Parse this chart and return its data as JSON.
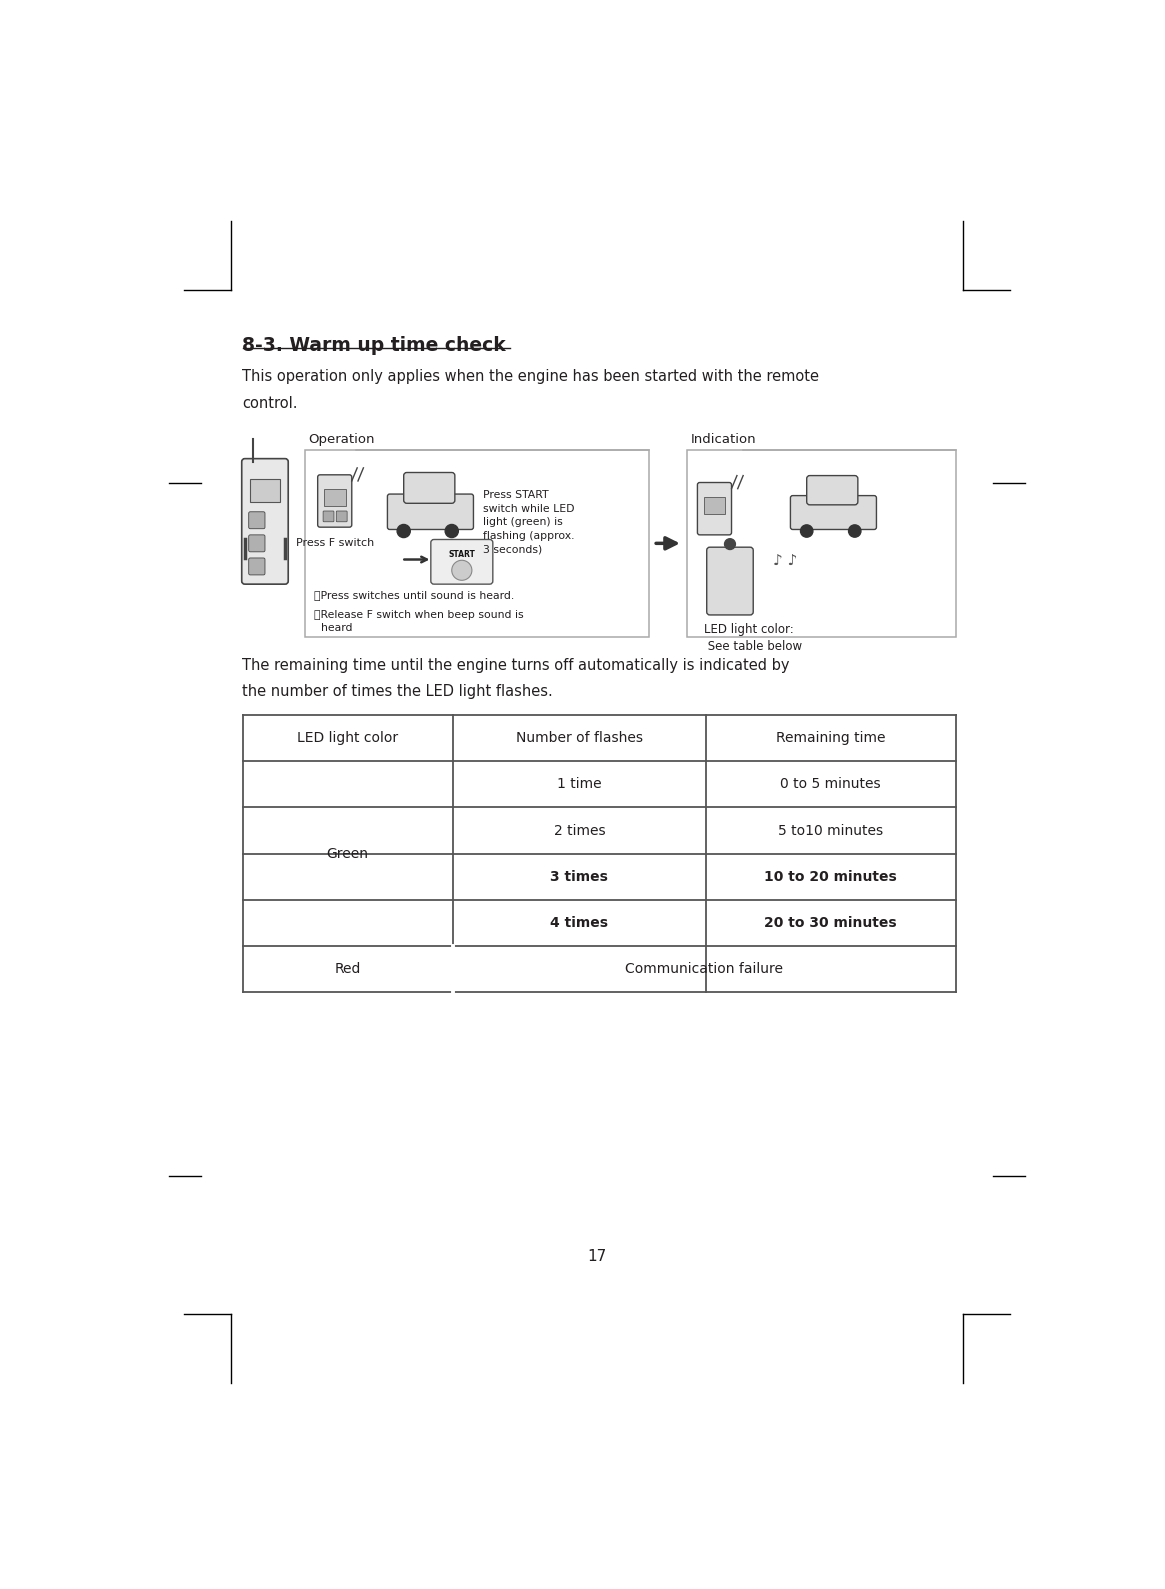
{
  "title": "8-3. Warm up time check",
  "intro_line1": "This operation only applies when the engine has been started with the remote",
  "intro_line2": "control.",
  "table_intro_line1": "The remaining time until the engine turns off automatically is indicated by",
  "table_intro_line2": "the number of times the LED light flashes.",
  "operation_label": "Operation",
  "indication_label": "Indication",
  "press_f_switch": "Press F switch",
  "press_start_text": "Press START\nswitch while LED\nlight (green) is\nflashing (approx.\n3 seconds)",
  "bullet1": "・Press switches until sound is heard.",
  "bullet2": "・Release F switch when beep sound is\n  heard",
  "led_light_color_label": "LED light color:\n See table below",
  "table_headers": [
    "LED light color",
    "Number of flashes",
    "Remaining time"
  ],
  "page_number": "17",
  "bg_color": "#ffffff",
  "text_color": "#231f20",
  "table_border_color": "#555555",
  "box_border_color": "#aaaaaa"
}
